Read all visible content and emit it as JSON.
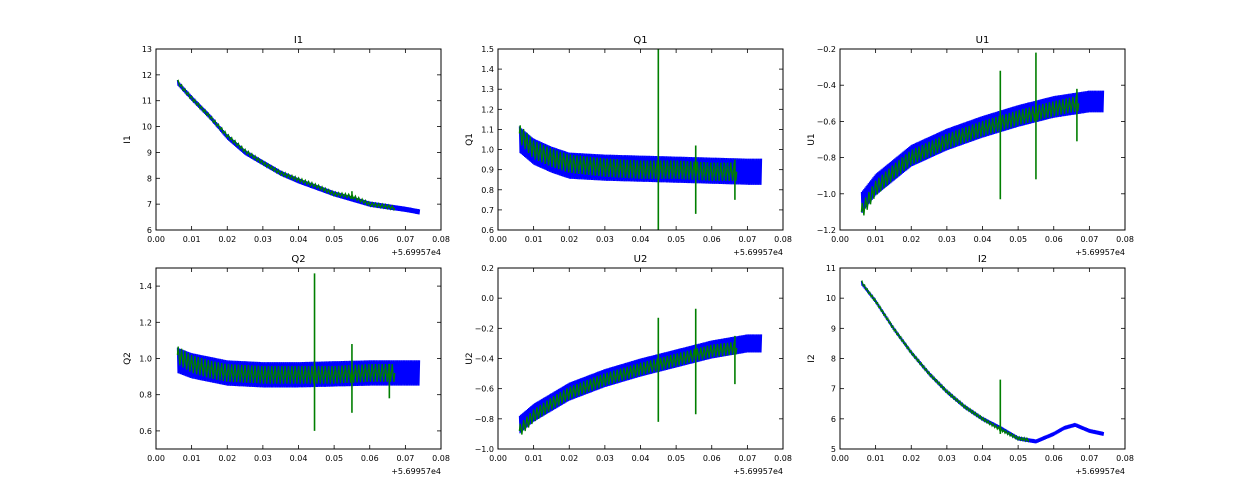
{
  "colors": {
    "series1": "#0000ff",
    "series2": "#007f00",
    "axes": "#000000",
    "background": "#ffffff"
  },
  "chart_data": [
    {
      "type": "line",
      "title": "I1",
      "xlabel": "",
      "ylabel": "I1",
      "x_offset": "+5.69957e4",
      "xlim": [
        0,
        0.08
      ],
      "ylim": [
        6,
        13
      ],
      "xticks": [
        "0.00",
        "0.01",
        "0.02",
        "0.03",
        "0.04",
        "0.05",
        "0.06",
        "0.07",
        "0.08"
      ],
      "yticks": [
        "6",
        "7",
        "8",
        "9",
        "10",
        "11",
        "12",
        "13"
      ],
      "series": [
        {
          "x": [
            0.006,
            0.008,
            0.01,
            0.015,
            0.02,
            0.025,
            0.03,
            0.035,
            0.04,
            0.045,
            0.05,
            0.055,
            0.06,
            0.065,
            0.07,
            0.074
          ],
          "y": [
            11.7,
            11.4,
            11.1,
            10.4,
            9.6,
            9.0,
            8.6,
            8.2,
            7.9,
            7.65,
            7.4,
            7.2,
            7.0,
            6.9,
            6.8,
            6.7
          ],
          "spread": 0.2
        },
        {
          "x": [
            0.006,
            0.008,
            0.01,
            0.015,
            0.02,
            0.025,
            0.03,
            0.035,
            0.04,
            0.045,
            0.05,
            0.055,
            0.06,
            0.065,
            0.067
          ],
          "y": [
            11.75,
            11.4,
            11.1,
            10.4,
            9.65,
            9.05,
            8.6,
            8.2,
            7.95,
            7.7,
            7.4,
            7.3,
            7.0,
            6.9,
            6.85
          ],
          "spikes": [
            {
              "x": 0.055,
              "top": 7.5,
              "bottom": 7.2
            }
          ]
        }
      ]
    },
    {
      "type": "line",
      "title": "Q1",
      "xlabel": "",
      "ylabel": "Q1",
      "x_offset": "+5.69957e4",
      "xlim": [
        0,
        0.08
      ],
      "ylim": [
        0.6,
        1.5
      ],
      "xticks": [
        "0.00",
        "0.01",
        "0.02",
        "0.03",
        "0.04",
        "0.05",
        "0.06",
        "0.07",
        "0.08"
      ],
      "yticks": [
        "0.6",
        "0.7",
        "0.8",
        "0.9",
        "1.0",
        "1.1",
        "1.2",
        "1.3",
        "1.4",
        "1.5"
      ],
      "series": [
        {
          "x": [
            0.006,
            0.01,
            0.015,
            0.02,
            0.03,
            0.04,
            0.05,
            0.06,
            0.07,
            0.074
          ],
          "y": [
            1.05,
            0.99,
            0.95,
            0.92,
            0.91,
            0.905,
            0.9,
            0.895,
            0.89,
            0.89
          ],
          "spread": 0.13
        },
        {
          "x": [
            0.006,
            0.01,
            0.015,
            0.02,
            0.03,
            0.04,
            0.05,
            0.06,
            0.067
          ],
          "y": [
            1.08,
            1.0,
            0.96,
            0.93,
            0.91,
            0.9,
            0.9,
            0.89,
            0.89
          ],
          "spikes": [
            {
              "x": 0.045,
              "top": 1.5,
              "bottom": 0.6
            },
            {
              "x": 0.0555,
              "top": 1.02,
              "bottom": 0.68
            },
            {
              "x": 0.0665,
              "top": 0.95,
              "bottom": 0.75
            }
          ]
        }
      ]
    },
    {
      "type": "line",
      "title": "U1",
      "xlabel": "",
      "ylabel": "U1",
      "x_offset": "+5.69957e4",
      "xlim": [
        0,
        0.08
      ],
      "ylim": [
        -1.2,
        -0.2
      ],
      "xticks": [
        "0.00",
        "0.01",
        "0.02",
        "0.03",
        "0.04",
        "0.05",
        "0.06",
        "0.07",
        "0.08"
      ],
      "yticks": [
        "−1.2",
        "−1.0",
        "−0.8",
        "−0.6",
        "−0.4",
        "−0.2"
      ],
      "series": [
        {
          "x": [
            0.006,
            0.01,
            0.015,
            0.02,
            0.03,
            0.04,
            0.05,
            0.06,
            0.07,
            0.074
          ],
          "y": [
            -1.05,
            -0.95,
            -0.87,
            -0.79,
            -0.7,
            -0.63,
            -0.57,
            -0.52,
            -0.49,
            -0.49
          ],
          "spread": 0.12
        },
        {
          "x": [
            0.006,
            0.01,
            0.015,
            0.02,
            0.03,
            0.04,
            0.05,
            0.06,
            0.067
          ],
          "y": [
            -1.1,
            -0.97,
            -0.88,
            -0.8,
            -0.71,
            -0.64,
            -0.58,
            -0.53,
            -0.5
          ],
          "spikes": [
            {
              "x": 0.045,
              "top": -0.32,
              "bottom": -1.03
            },
            {
              "x": 0.055,
              "top": -0.22,
              "bottom": -0.92
            },
            {
              "x": 0.0665,
              "top": -0.42,
              "bottom": -0.71
            }
          ]
        }
      ]
    },
    {
      "type": "line",
      "title": "Q2",
      "xlabel": "",
      "ylabel": "Q2",
      "x_offset": "+5.69957e4",
      "xlim": [
        0,
        0.08
      ],
      "ylim": [
        0.5,
        1.5
      ],
      "xticks": [
        "0.00",
        "0.01",
        "0.02",
        "0.03",
        "0.04",
        "0.05",
        "0.06",
        "0.07",
        "0.08"
      ],
      "yticks": [
        "0.6",
        "0.8",
        "1.0",
        "1.2",
        "1.4"
      ],
      "series": [
        {
          "x": [
            0.006,
            0.01,
            0.015,
            0.02,
            0.03,
            0.04,
            0.05,
            0.06,
            0.07,
            0.074
          ],
          "y": [
            0.99,
            0.96,
            0.94,
            0.92,
            0.91,
            0.91,
            0.915,
            0.92,
            0.92,
            0.92
          ],
          "spread": 0.14
        },
        {
          "x": [
            0.006,
            0.01,
            0.015,
            0.02,
            0.03,
            0.04,
            0.05,
            0.06,
            0.067
          ],
          "y": [
            1.02,
            0.97,
            0.94,
            0.92,
            0.91,
            0.91,
            0.91,
            0.92,
            0.92
          ],
          "spikes": [
            {
              "x": 0.0445,
              "top": 1.47,
              "bottom": 0.6
            },
            {
              "x": 0.055,
              "top": 1.08,
              "bottom": 0.7
            },
            {
              "x": 0.0655,
              "top": 0.97,
              "bottom": 0.78
            }
          ]
        }
      ]
    },
    {
      "type": "line",
      "title": "U2",
      "xlabel": "",
      "ylabel": "U2",
      "x_offset": "+5.69957e4",
      "xlim": [
        0,
        0.08
      ],
      "ylim": [
        -1.0,
        0.2
      ],
      "xticks": [
        "0.00",
        "0.01",
        "0.02",
        "0.03",
        "0.04",
        "0.05",
        "0.06",
        "0.07",
        "0.08"
      ],
      "yticks": [
        "−1.0",
        "−0.8",
        "−0.6",
        "−0.4",
        "−0.2",
        "0.0",
        "0.2"
      ],
      "series": [
        {
          "x": [
            0.006,
            0.01,
            0.015,
            0.02,
            0.03,
            0.04,
            0.05,
            0.06,
            0.07,
            0.074
          ],
          "y": [
            -0.84,
            -0.76,
            -0.69,
            -0.62,
            -0.53,
            -0.46,
            -0.4,
            -0.34,
            -0.3,
            -0.3
          ],
          "spread": 0.12
        },
        {
          "x": [
            0.006,
            0.01,
            0.015,
            0.02,
            0.03,
            0.04,
            0.05,
            0.06,
            0.067
          ],
          "y": [
            -0.88,
            -0.78,
            -0.7,
            -0.63,
            -0.54,
            -0.47,
            -0.41,
            -0.35,
            -0.33
          ],
          "spikes": [
            {
              "x": 0.045,
              "top": -0.13,
              "bottom": -0.82
            },
            {
              "x": 0.0555,
              "top": -0.07,
              "bottom": -0.77
            },
            {
              "x": 0.0665,
              "top": -0.25,
              "bottom": -0.57
            }
          ]
        }
      ]
    },
    {
      "type": "line",
      "title": "I2",
      "xlabel": "",
      "ylabel": "I2",
      "x_offset": "+5.69957e4",
      "xlim": [
        0,
        0.08
      ],
      "ylim": [
        5,
        11
      ],
      "xticks": [
        "0.00",
        "0.01",
        "0.02",
        "0.03",
        "0.04",
        "0.05",
        "0.06",
        "0.07",
        "0.08"
      ],
      "yticks": [
        "5",
        "6",
        "7",
        "8",
        "9",
        "10",
        "11"
      ],
      "series": [
        {
          "x": [
            0.006,
            0.008,
            0.01,
            0.015,
            0.02,
            0.025,
            0.03,
            0.035,
            0.04,
            0.045,
            0.05,
            0.055,
            0.06,
            0.063,
            0.066,
            0.07,
            0.074
          ],
          "y": [
            10.5,
            10.2,
            9.9,
            9.0,
            8.2,
            7.5,
            6.9,
            6.4,
            6.0,
            5.7,
            5.35,
            5.25,
            5.5,
            5.7,
            5.8,
            5.6,
            5.5
          ],
          "spread": 0.13
        },
        {
          "x": [
            0.006,
            0.008,
            0.01,
            0.015,
            0.02,
            0.025,
            0.03,
            0.035,
            0.04,
            0.045,
            0.05,
            0.053
          ],
          "y": [
            10.55,
            10.2,
            9.9,
            9.0,
            8.2,
            7.5,
            6.9,
            6.4,
            6.0,
            5.65,
            5.35,
            5.3
          ],
          "spikes": [
            {
              "x": 0.045,
              "top": 7.3,
              "bottom": 5.5
            }
          ]
        }
      ]
    }
  ]
}
